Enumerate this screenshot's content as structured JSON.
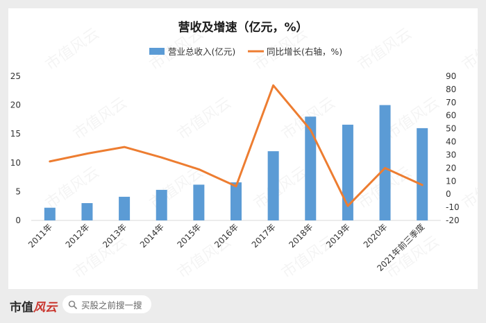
{
  "chart_data": {
    "type": "bar+line",
    "title": "营收及增速（亿元，%）",
    "categories": [
      "2011年",
      "2012年",
      "2013年",
      "2014年",
      "2015年",
      "2016年",
      "2017年",
      "2018年",
      "2019年",
      "2020年",
      "2021年前三季度"
    ],
    "series": [
      {
        "name": "营业总收入(亿元)",
        "type": "bar",
        "axis": "left",
        "color": "#5b9bd5",
        "values": [
          2.2,
          3.0,
          4.1,
          5.3,
          6.2,
          6.6,
          12.0,
          18.0,
          16.6,
          20.0,
          16.0
        ]
      },
      {
        "name": "同比增长(右轴，%)",
        "type": "line",
        "axis": "right",
        "color": "#ed7d31",
        "values": [
          25,
          31,
          36,
          28,
          19,
          6,
          83,
          49,
          -9,
          20,
          7
        ]
      }
    ],
    "yleft": {
      "min": 0,
      "max": 25,
      "step": 5,
      "ticks": [
        "0",
        "5",
        "10",
        "15",
        "20",
        "25"
      ]
    },
    "yright": {
      "min": -20,
      "max": 90,
      "step": 10,
      "ticks": [
        "-20",
        "-10",
        "0",
        "10",
        "20",
        "30",
        "40",
        "50",
        "60",
        "70",
        "80",
        "90"
      ]
    },
    "legend_position": "top-center",
    "grid": false
  },
  "watermark": "市值风云",
  "footer": {
    "brand_main": "市值",
    "brand_accent": "风云",
    "search_icon": "search-icon",
    "search_text": "买股之前搜一搜"
  }
}
